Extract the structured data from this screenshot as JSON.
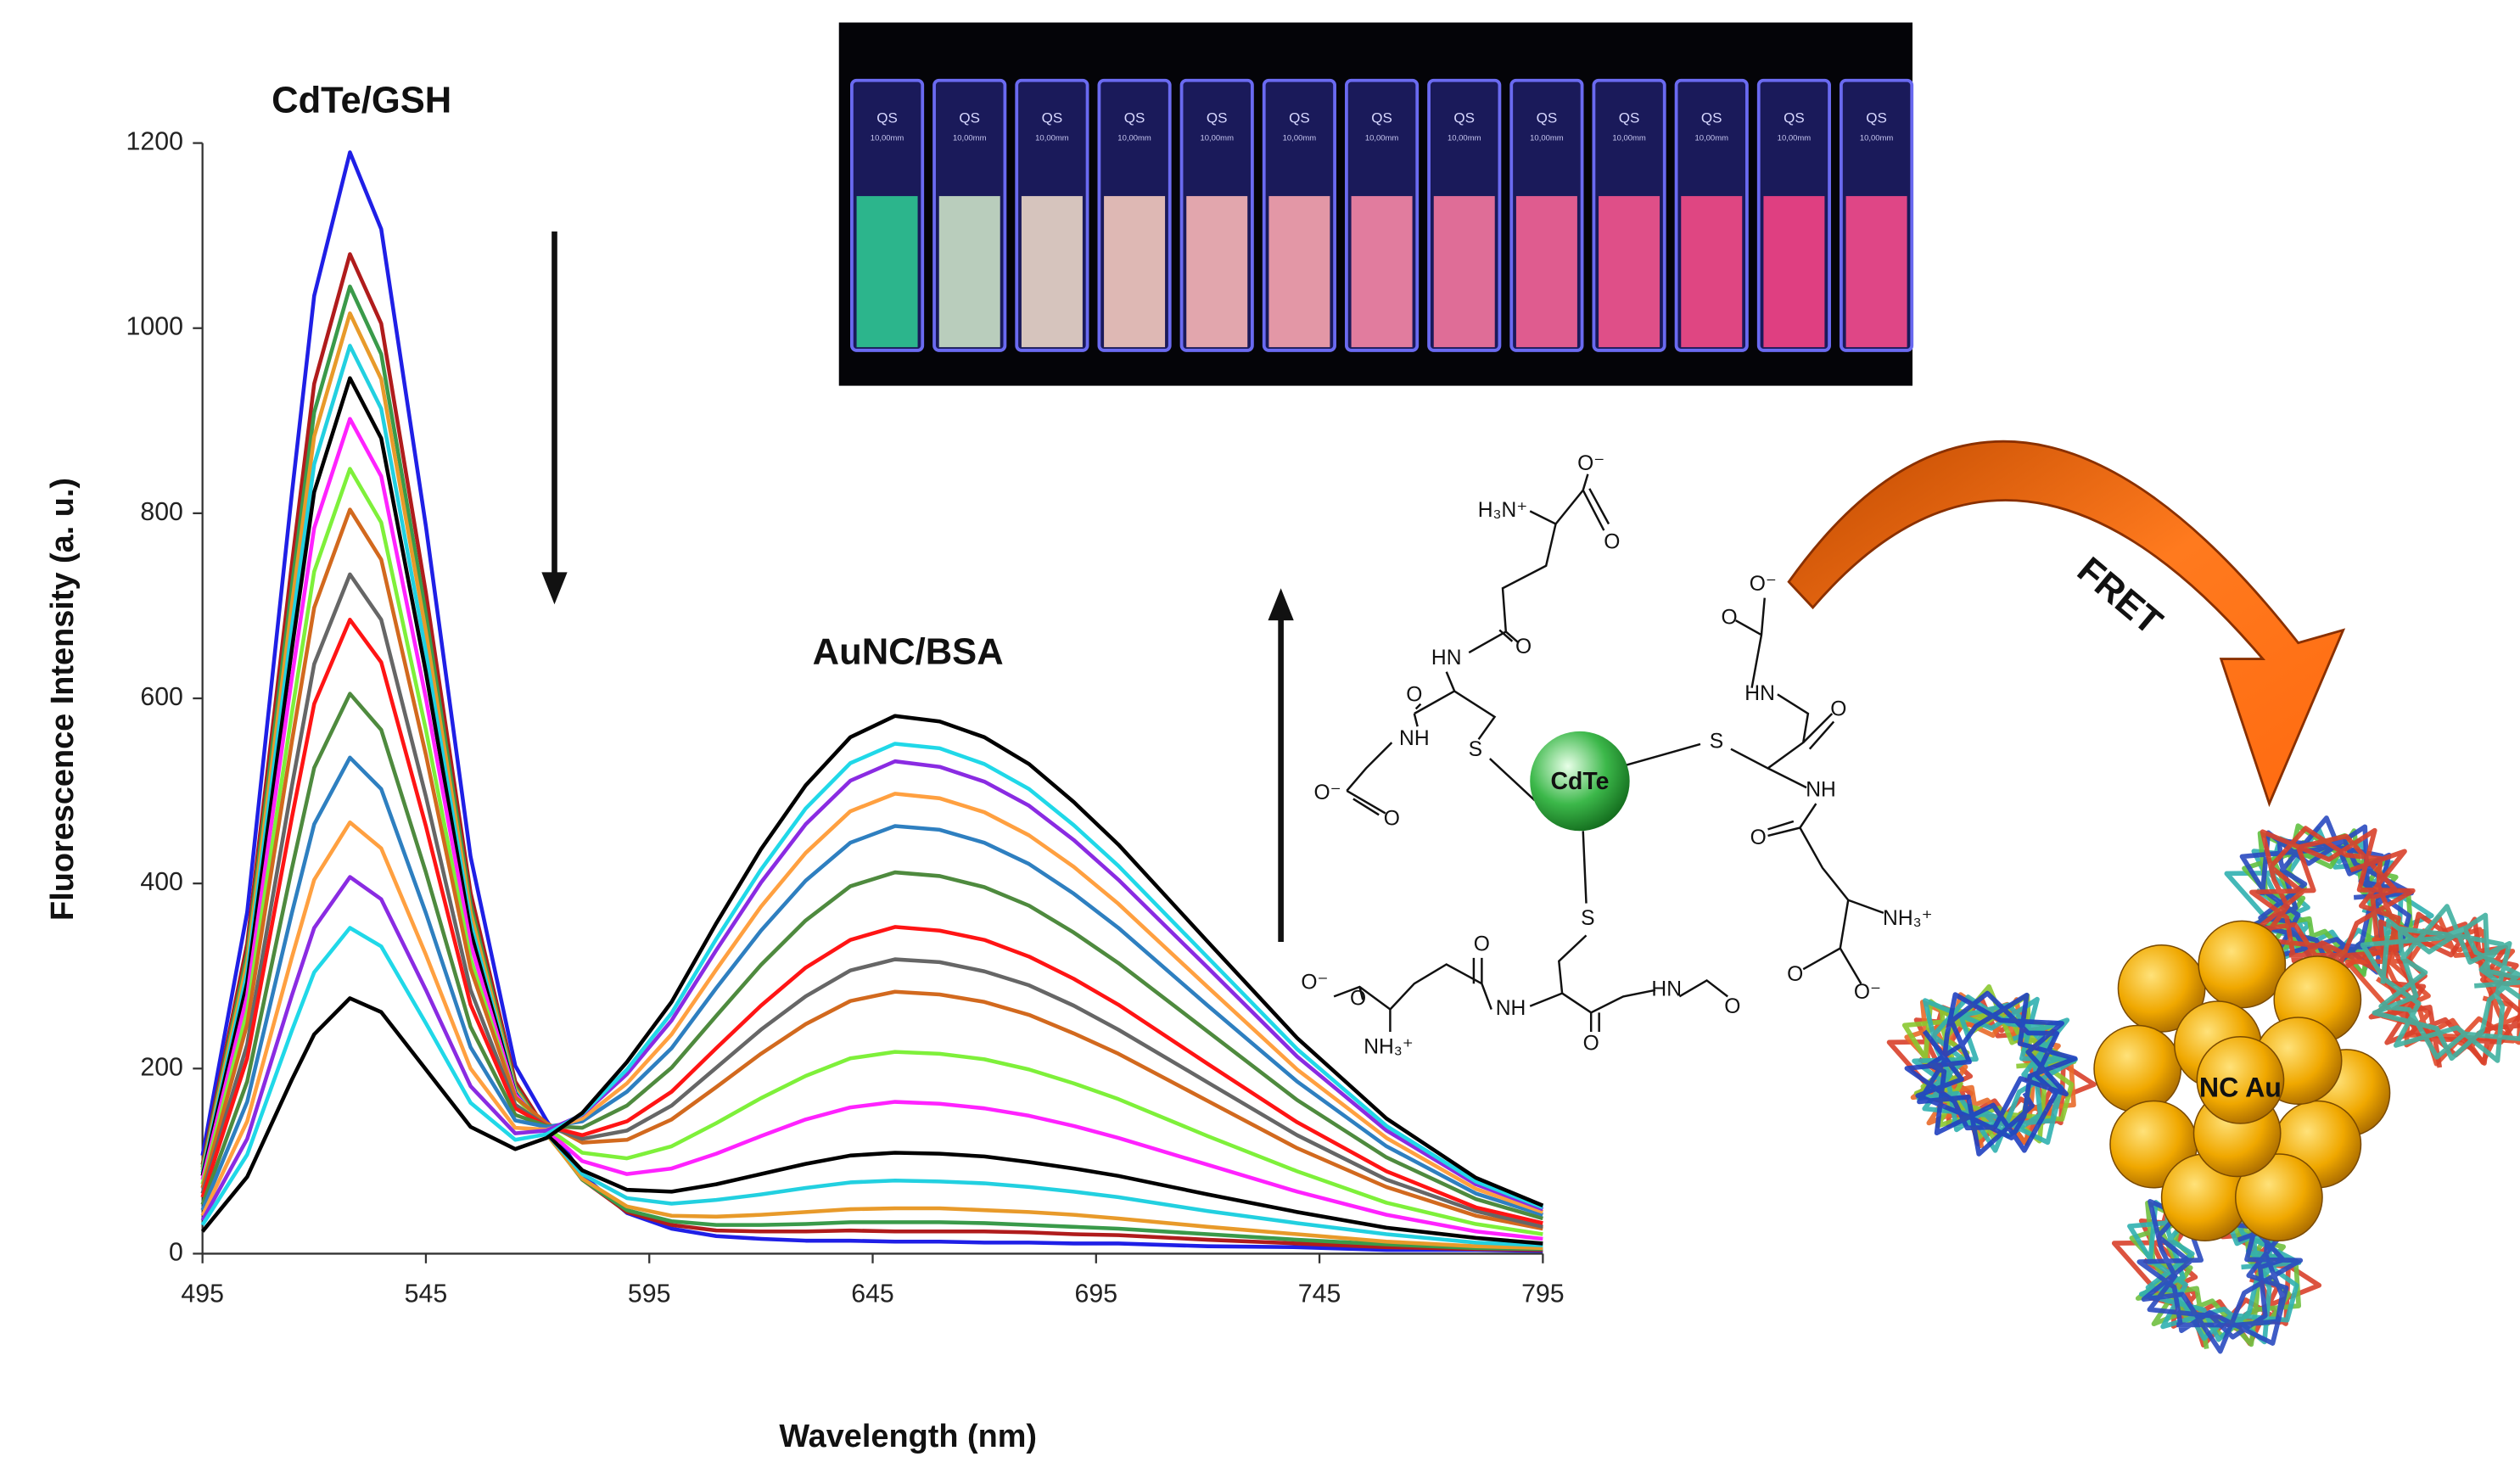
{
  "chart_data": {
    "type": "line",
    "annotations": [
      "CdTe/GSH",
      "AuNC/BSA"
    ],
    "ylabel": "Fluorescence Intensity (a. u.)",
    "xlabel": "Wavelength (nm)",
    "x": [
      495,
      505,
      515,
      520,
      528,
      535,
      545,
      555,
      565,
      572,
      580,
      590,
      600,
      610,
      620,
      630,
      640,
      650,
      660,
      670,
      680,
      690,
      700,
      720,
      740,
      760,
      780,
      795
    ],
    "xlim": [
      495,
      795
    ],
    "ylim": [
      0,
      1200
    ],
    "xticks": [
      495,
      545,
      595,
      645,
      695,
      745,
      795
    ],
    "yticks": [
      0,
      200,
      400,
      600,
      800,
      1000,
      1200
    ],
    "grid": false,
    "series": [
      {
        "color": "#1f1fe6",
        "values": [
          106,
          369,
          821,
          1035,
          1190,
          1107,
          786,
          429,
          203,
          144,
          85,
          44,
          27,
          19,
          16,
          14,
          14,
          13,
          13,
          12,
          12,
          11,
          11,
          8,
          7,
          4,
          4,
          3
        ]
      },
      {
        "color": "#b01c1c",
        "values": [
          96,
          335,
          745,
          940,
          1080,
          1005,
          714,
          390,
          186,
          133,
          80,
          45,
          31,
          25,
          24,
          24,
          25,
          24,
          24,
          24,
          23,
          21,
          20,
          15,
          11,
          7,
          5,
          4
        ]
      },
      {
        "color": "#3a9a4a",
        "values": [
          93,
          324,
          721,
          909,
          1045,
          972,
          691,
          378,
          181,
          130,
          80,
          47,
          35,
          31,
          31,
          32,
          34,
          34,
          34,
          33,
          31,
          29,
          27,
          21,
          15,
          10,
          6,
          5
        ]
      },
      {
        "color": "#e89a2a",
        "values": [
          90,
          315,
          701,
          883,
          1016,
          945,
          672,
          369,
          178,
          129,
          81,
          51,
          41,
          40,
          42,
          45,
          48,
          49,
          49,
          47,
          45,
          42,
          38,
          29,
          21,
          13,
          8,
          6
        ]
      },
      {
        "color": "#22d0e0",
        "values": [
          87,
          304,
          677,
          853,
          981,
          913,
          650,
          358,
          175,
          130,
          86,
          60,
          54,
          58,
          64,
          71,
          77,
          79,
          78,
          76,
          72,
          67,
          61,
          46,
          33,
          21,
          12,
          9
        ]
      },
      {
        "color": "#000000",
        "values": [
          84,
          293,
          653,
          823,
          946,
          881,
          628,
          348,
          173,
          130,
          90,
          69,
          67,
          75,
          86,
          97,
          106,
          109,
          108,
          105,
          99,
          92,
          84,
          64,
          45,
          28,
          17,
          11
        ]
      },
      {
        "color": "#ff22ff",
        "values": [
          80,
          279,
          622,
          784,
          902,
          840,
          600,
          335,
          172,
          134,
          100,
          86,
          92,
          108,
          127,
          145,
          158,
          164,
          162,
          157,
          149,
          138,
          125,
          96,
          67,
          42,
          24,
          16
        ]
      },
      {
        "color": "#7ef03a",
        "values": [
          75,
          262,
          584,
          737,
          848,
          790,
          566,
          319,
          169,
          136,
          109,
          103,
          116,
          141,
          168,
          192,
          211,
          218,
          216,
          210,
          199,
          184,
          167,
          127,
          89,
          55,
          32,
          21
        ]
      },
      {
        "color": "#d2691e",
        "values": [
          71,
          248,
          553,
          698,
          804,
          750,
          539,
          308,
          169,
          141,
          120,
          123,
          145,
          180,
          216,
          248,
          273,
          283,
          280,
          272,
          258,
          238,
          216,
          165,
          114,
          72,
          41,
          27
        ]
      },
      {
        "color": "#666666",
        "values": [
          65,
          226,
          505,
          637,
          734,
          685,
          494,
          285,
          161,
          138,
          124,
          133,
          160,
          201,
          242,
          278,
          306,
          318,
          315,
          305,
          290,
          268,
          242,
          185,
          128,
          80,
          46,
          29
        ]
      },
      {
        "color": "#ff1414",
        "values": [
          61,
          211,
          471,
          594,
          685,
          639,
          462,
          269,
          157,
          138,
          128,
          143,
          175,
          222,
          268,
          309,
          339,
          353,
          349,
          339,
          321,
          297,
          269,
          205,
          142,
          89,
          50,
          33
        ]
      },
      {
        "color": "#4e8a3e",
        "values": [
          53,
          186,
          416,
          525,
          605,
          566,
          412,
          245,
          150,
          138,
          136,
          160,
          201,
          257,
          312,
          360,
          397,
          412,
          408,
          396,
          376,
          347,
          314,
          240,
          166,
          104,
          59,
          38
        ]
      },
      {
        "color": "#2e7fc0",
        "values": [
          47,
          164,
          368,
          464,
          536,
          502,
          368,
          223,
          144,
          137,
          143,
          175,
          222,
          287,
          349,
          403,
          444,
          462,
          458,
          444,
          421,
          389,
          352,
          268,
          186,
          116,
          65,
          42
        ]
      },
      {
        "color": "#ffa040",
        "values": [
          41,
          143,
          320,
          404,
          466,
          438,
          323,
          200,
          136,
          134,
          146,
          184,
          237,
          307,
          375,
          433,
          478,
          497,
          492,
          477,
          452,
          418,
          378,
          288,
          199,
          125,
          70,
          45
        ]
      },
      {
        "color": "#8a2be2",
        "values": [
          36,
          124,
          279,
          352,
          407,
          383,
          285,
          181,
          130,
          133,
          150,
          194,
          252,
          328,
          401,
          464,
          511,
          532,
          526,
          510,
          484,
          447,
          404,
          309,
          213,
          133,
          75,
          48
        ]
      },
      {
        "color": "#20d8e8",
        "values": [
          31,
          107,
          241,
          304,
          352,
          332,
          249,
          163,
          123,
          129,
          151,
          199,
          260,
          340,
          415,
          481,
          530,
          551,
          546,
          529,
          502,
          463,
          419,
          320,
          221,
          138,
          78,
          50
        ]
      },
      {
        "color": "#000000",
        "values": [
          24,
          83,
          188,
          237,
          276,
          261,
          199,
          137,
          113,
          125,
          152,
          207,
          272,
          357,
          437,
          506,
          558,
          581,
          575,
          558,
          529,
          488,
          442,
          337,
          233,
          146,
          82,
          52
        ]
      }
    ]
  },
  "photo": {
    "cuvette_label": "QS",
    "cuvette_size": "10,00mm"
  },
  "structure": {
    "core": "CdTe",
    "labels": [
      "H₃N⁺",
      "O⁻",
      "O",
      "HN",
      "O",
      "O",
      "NH",
      "O⁻",
      "O",
      "S",
      "S",
      "S",
      "O⁻",
      "O",
      "HN",
      "O",
      "NH",
      "O",
      "NH₃⁺",
      "O",
      "O⁻",
      "O⁻",
      "O",
      "NH₃⁺",
      "O",
      "NH",
      "O",
      "HN",
      "O"
    ]
  },
  "scheme": {
    "arrow_label": "FRET",
    "cluster_label": "NC Au"
  }
}
